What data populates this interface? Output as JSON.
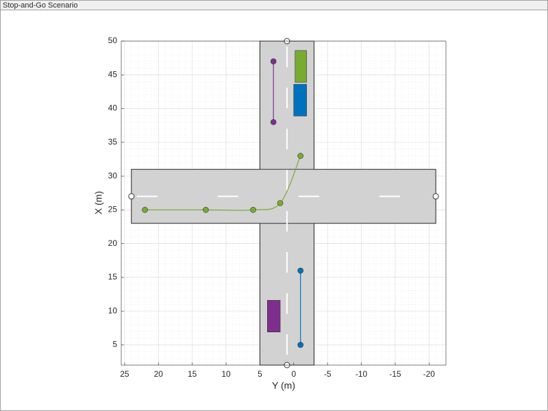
{
  "window_title": "Stop-and-Go Scenario",
  "chart_data": {
    "type": "scenario",
    "xlabel": "Y (m)",
    "ylabel": "X (m)",
    "xlim": [
      25.5,
      -22.5
    ],
    "ylim": [
      2,
      50
    ],
    "xticks": [
      25,
      20,
      15,
      10,
      5,
      0,
      -5,
      -10,
      -15,
      -20
    ],
    "yticks": [
      5,
      10,
      15,
      20,
      25,
      30,
      35,
      40,
      45,
      50
    ],
    "grid": true,
    "minor_grid": true,
    "roads": [
      {
        "x": [
          5,
          -3
        ],
        "y": [
          2,
          50
        ]
      },
      {
        "x": [
          24,
          -21
        ],
        "y": [
          23,
          31
        ]
      }
    ],
    "series": [
      {
        "color": "#77ac30",
        "x": [
          22,
          13,
          6,
          2,
          -1
        ],
        "values": [
          25,
          25,
          25,
          26,
          33
        ]
      },
      {
        "color": "#7e2f8e",
        "x": [
          3,
          3
        ],
        "values": [
          47,
          38
        ]
      },
      {
        "color": "#0072bd",
        "x": [
          -1,
          -1
        ],
        "values": [
          16,
          5
        ]
      }
    ],
    "vehicles": [
      {
        "color": "#77ac30",
        "x": [
          -0.2,
          -1.9
        ],
        "y": [
          43.9,
          48.6
        ]
      },
      {
        "color": "#0072bd",
        "x": [
          0,
          -1.9
        ],
        "y": [
          38.9,
          43.6
        ]
      },
      {
        "color": "#7e2f8e",
        "x": [
          3.9,
          2
        ],
        "y": [
          6.9,
          11.6
        ]
      }
    ]
  }
}
